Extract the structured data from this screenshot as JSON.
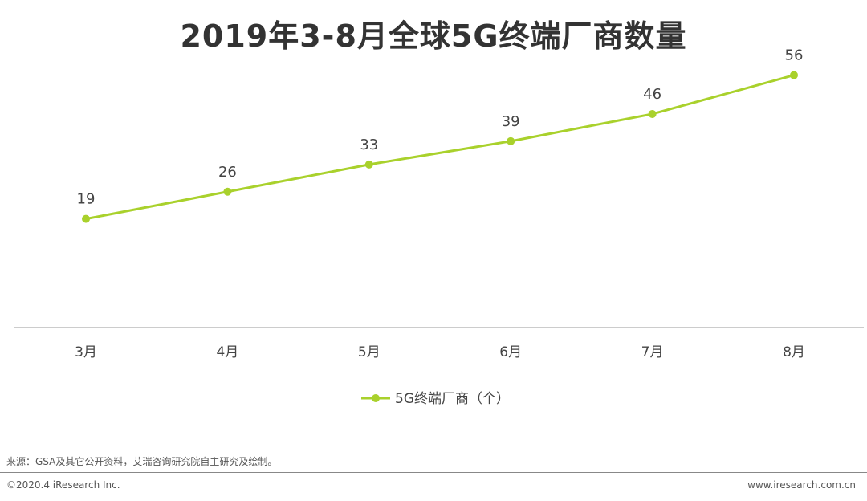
{
  "chart_data": {
    "type": "line",
    "title": "2019年3-8月全球5G终端厂商数量",
    "categories": [
      "3月",
      "4月",
      "5月",
      "6月",
      "7月",
      "8月"
    ],
    "series": [
      {
        "name": "5G终端厂商（个）",
        "values": [
          19,
          26,
          33,
          39,
          46,
          56
        ]
      }
    ],
    "legend_position": "bottom",
    "line_color": "#a9d12c",
    "grid": false
  },
  "footer": {
    "source": "来源：GSA及其它公开资料，艾瑞咨询研究院自主研究及绘制。",
    "copyright": "©2020.4 iResearch Inc.",
    "website": "www.iresearch.com.cn"
  }
}
